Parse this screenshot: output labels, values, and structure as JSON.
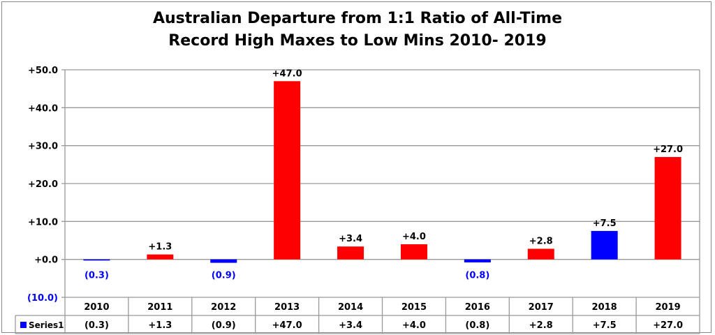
{
  "chart_data": {
    "type": "bar",
    "title_lines": [
      "Australian Departure from 1:1 Ratio of All-Time",
      "Record High Maxes to Low Mins 2010- 2019"
    ],
    "categories": [
      "2010",
      "2011",
      "2012",
      "2013",
      "2014",
      "2015",
      "2016",
      "2017",
      "2018",
      "2019"
    ],
    "series": [
      {
        "name": "Series1",
        "values": [
          -0.3,
          1.3,
          -0.9,
          47.0,
          3.4,
          4.0,
          -0.8,
          2.8,
          7.5,
          27.0
        ]
      }
    ],
    "data_labels": [
      "(0.3)",
      "+1.3",
      "(0.9)",
      "+47.0",
      "+3.4",
      "+4.0",
      "(0.8)",
      "+2.8",
      "+7.5",
      "+27.0"
    ],
    "bar_colors": [
      "#0000FF",
      "#FF0000",
      "#0000FF",
      "#FF0000",
      "#FF0000",
      "#FF0000",
      "#0000FF",
      "#FF0000",
      "#0000FF",
      "#FF0000"
    ],
    "ylim": [
      -10,
      50
    ],
    "yticks": [
      50,
      40,
      30,
      20,
      10,
      0,
      -10
    ],
    "ytick_labels": [
      "+50.0",
      "+40.0",
      "+30.0",
      "+20.0",
      "+10.0",
      "+0.0",
      "(10.0)"
    ],
    "ytick_colors": [
      "#000000",
      "#000000",
      "#000000",
      "#000000",
      "#000000",
      "#000000",
      "#0000FF"
    ],
    "negative_label_color": "#0000FF",
    "grid": true,
    "legend": "data-table",
    "legend_swatch_color": "#0000FF"
  }
}
